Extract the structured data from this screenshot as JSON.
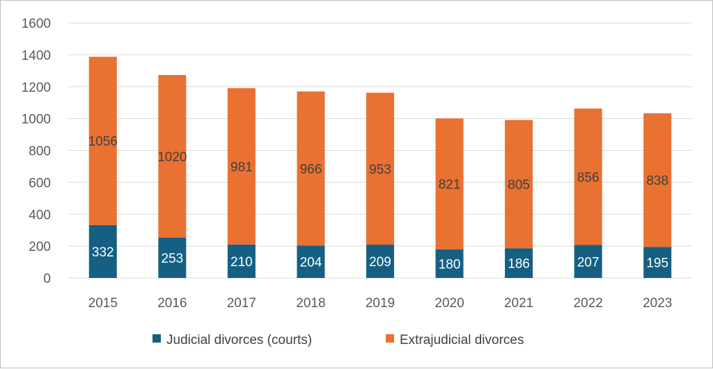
{
  "chart_data": {
    "type": "bar",
    "stacked": true,
    "categories": [
      "2015",
      "2016",
      "2017",
      "2018",
      "2019",
      "2020",
      "2021",
      "2022",
      "2023"
    ],
    "series": [
      {
        "name": "Judicial divorces (courts)",
        "color": "#156082",
        "label_color": "#ffffff",
        "values": [
          332,
          253,
          210,
          204,
          209,
          180,
          186,
          207,
          195
        ]
      },
      {
        "name": "Extrajudicial divorces",
        "color": "#e97132",
        "label_color": "#404040",
        "values": [
          1056,
          1020,
          981,
          966,
          953,
          821,
          805,
          856,
          838
        ]
      }
    ],
    "ylim": [
      0,
      1600
    ],
    "yticks": [
      0,
      200,
      400,
      600,
      800,
      1000,
      1200,
      1400,
      1600
    ],
    "grid": true,
    "legend": "bottom",
    "title": "",
    "xlabel": "",
    "ylabel": ""
  }
}
